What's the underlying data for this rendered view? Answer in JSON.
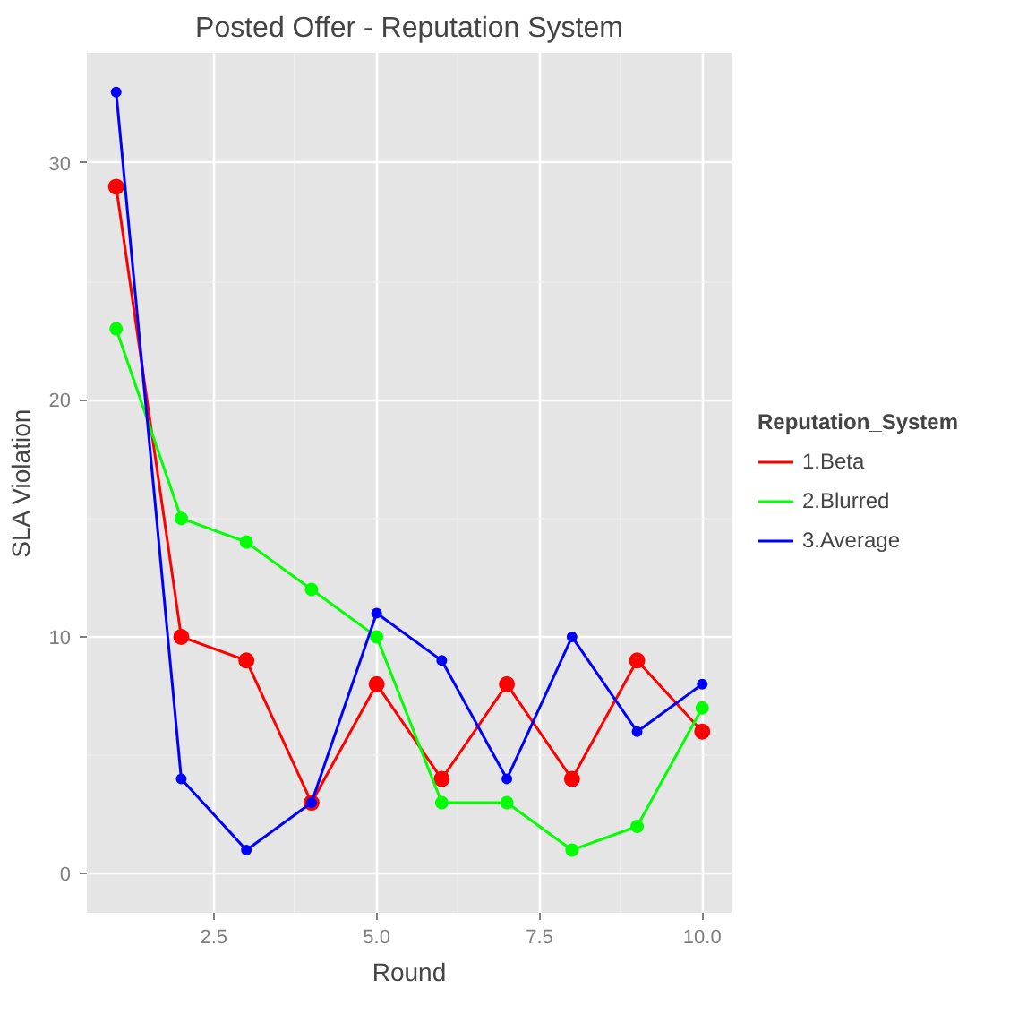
{
  "chart_data": {
    "type": "line",
    "title": "Posted Offer - Reputation System",
    "xlabel": "Round",
    "ylabel": "SLA Violation",
    "legend_title": "Reputation_System",
    "x": [
      1,
      2,
      3,
      4,
      5,
      6,
      7,
      8,
      9,
      10
    ],
    "series": [
      {
        "name": "1.Beta",
        "color": "#ff0000",
        "values": [
          29,
          10,
          9,
          3,
          8,
          4,
          8,
          4,
          9,
          6
        ]
      },
      {
        "name": "2.Blurred",
        "color": "#00ff00",
        "values": [
          23,
          15,
          14,
          12,
          10,
          3,
          3,
          1,
          2,
          7
        ]
      },
      {
        "name": "3.Average",
        "color": "#0000ff",
        "values": [
          33,
          4,
          1,
          3,
          11,
          9,
          4,
          10,
          6,
          8
        ]
      }
    ],
    "xlim": [
      0.55,
      10.45
    ],
    "ylim": [
      -1.65,
      34.65
    ],
    "xticks": [
      {
        "value": 2.5,
        "label": "2.5"
      },
      {
        "value": 5,
        "label": "5.0"
      },
      {
        "value": 7.5,
        "label": "7.5"
      },
      {
        "value": 10,
        "label": "10.0"
      }
    ],
    "yticks": [
      0,
      10,
      20,
      30
    ],
    "grid": true,
    "legend": "right",
    "marker": "circle",
    "line_style": "solid"
  }
}
